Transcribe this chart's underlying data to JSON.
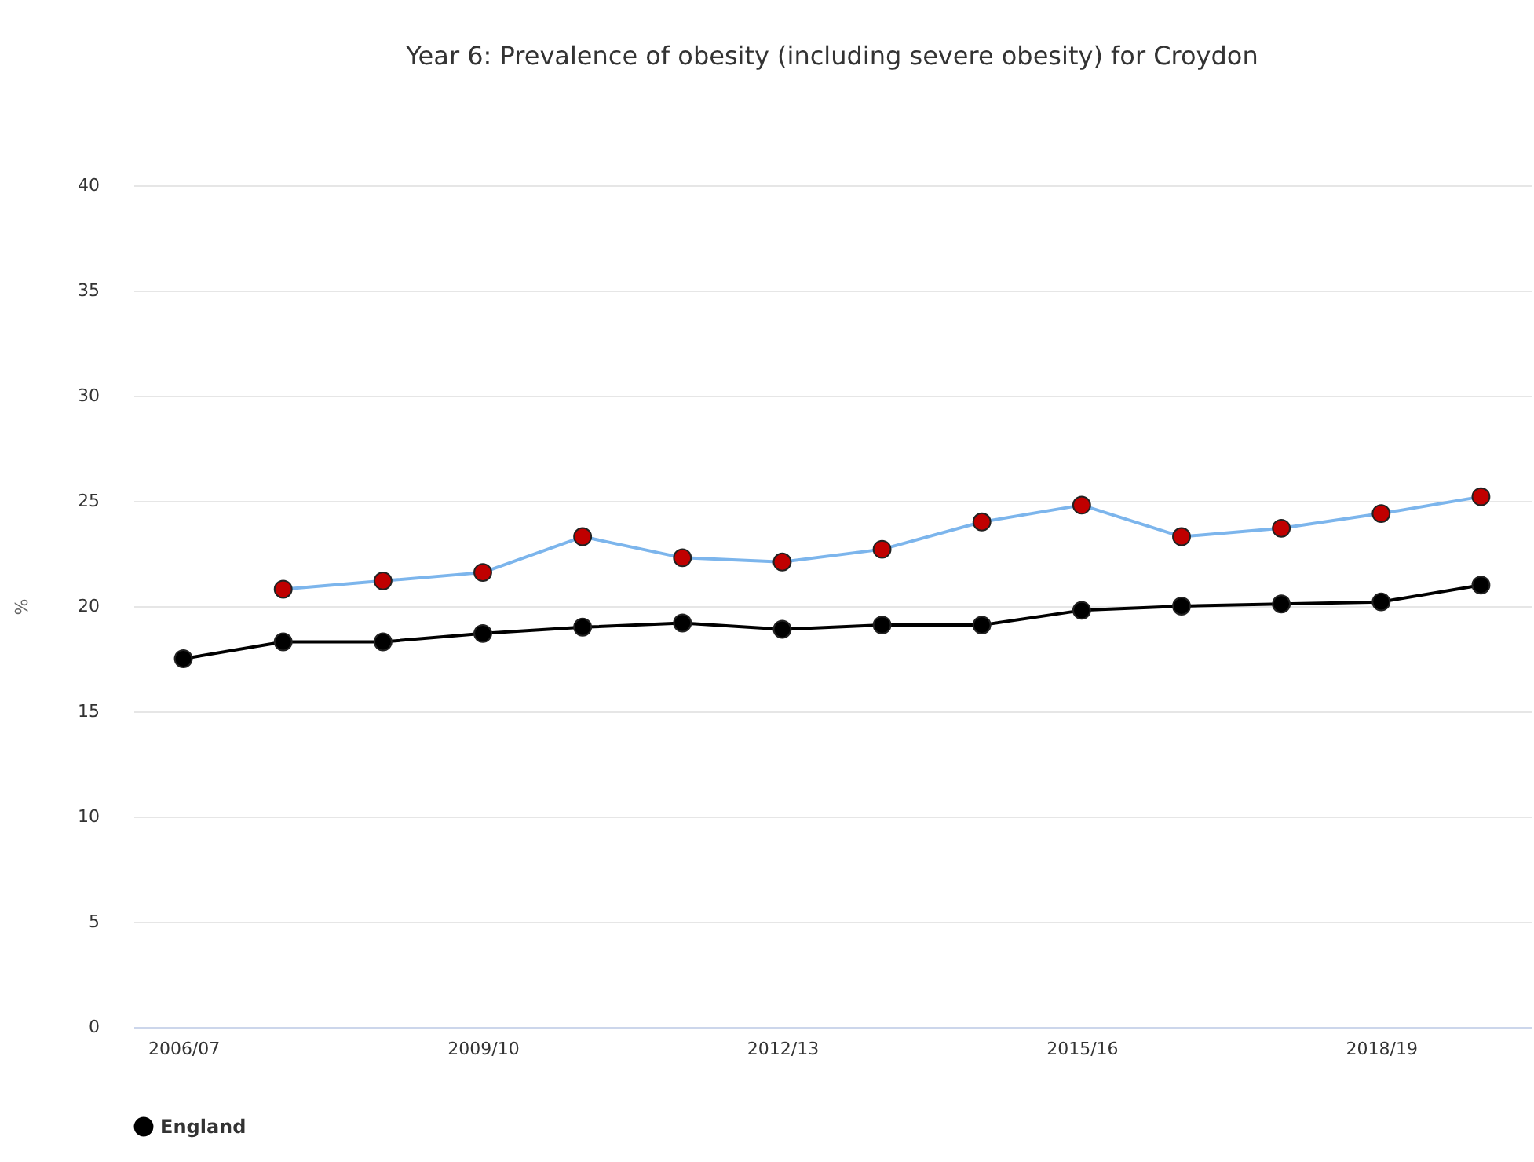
{
  "chart_data": {
    "type": "line",
    "title": "Year 6: Prevalence of obesity (including severe obesity) for Croydon",
    "ylabel": "%",
    "categories": [
      "2006/07",
      null,
      null,
      "2009/10",
      null,
      null,
      "2012/13",
      null,
      null,
      "2015/16",
      null,
      null,
      "2018/19",
      null
    ],
    "series": [
      {
        "color": "#c00000",
        "values": [
          null,
          20.8,
          21.2,
          21.6,
          23.3,
          22.3,
          22.1,
          22.7,
          24.0,
          24.8,
          23.3,
          23.7,
          24.4,
          25.2
        ]
      },
      {
        "name": "England",
        "color": "#000000",
        "values": [
          17.5,
          18.3,
          18.3,
          18.7,
          19.0,
          19.2,
          18.9,
          19.1,
          19.1,
          19.8,
          20.0,
          20.1,
          20.2,
          21.0
        ]
      }
    ],
    "ylim": [
      0,
      40
    ],
    "yticks": [
      0,
      5,
      10,
      15,
      20,
      25,
      30,
      35,
      40
    ],
    "grid": "y",
    "legend": "bottom",
    "marker": "circle"
  }
}
